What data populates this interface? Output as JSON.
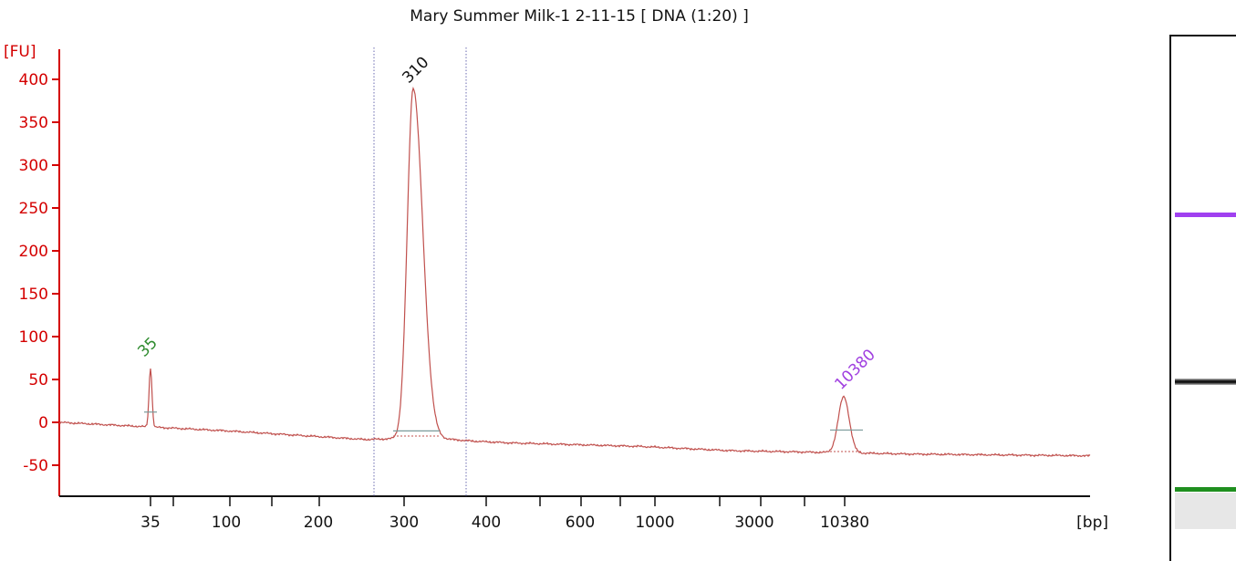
{
  "title": "Mary Summer Milk-1 2-11-15  [ DNA (1:20) ]",
  "chart_data": {
    "type": "line",
    "title": "Mary Summer Milk-1 2-11-15  [ DNA (1:20) ]",
    "ylabel": "[FU]",
    "xlabel": "[bp]",
    "ylim": [
      -80,
      420
    ],
    "yticks": [
      400,
      350,
      300,
      250,
      200,
      150,
      100,
      50,
      0,
      -50
    ],
    "xtick_labels": [
      "35",
      "100",
      "200",
      "300",
      "400",
      "600",
      "1000",
      "3000",
      "10380"
    ],
    "peaks": [
      {
        "label": "35",
        "x_bp": 35,
        "height": 64,
        "color": "#2e8b2e"
      },
      {
        "label": "310",
        "x_bp": 310,
        "height": 390,
        "color": "#111111"
      },
      {
        "label": "10380",
        "x_bp": 10380,
        "height": 30,
        "color": "#a040e0"
      }
    ],
    "region_bounds_bp": [
      260,
      380
    ],
    "line_color": "#c0504d",
    "axis_color": "#d40000",
    "grid": false
  },
  "gel_bands": [
    {
      "name": "upper-marker",
      "color": "#a040f0"
    },
    {
      "name": "sample-band",
      "color": "#111111"
    },
    {
      "name": "lower-marker",
      "color": "#1f8f1f"
    }
  ]
}
